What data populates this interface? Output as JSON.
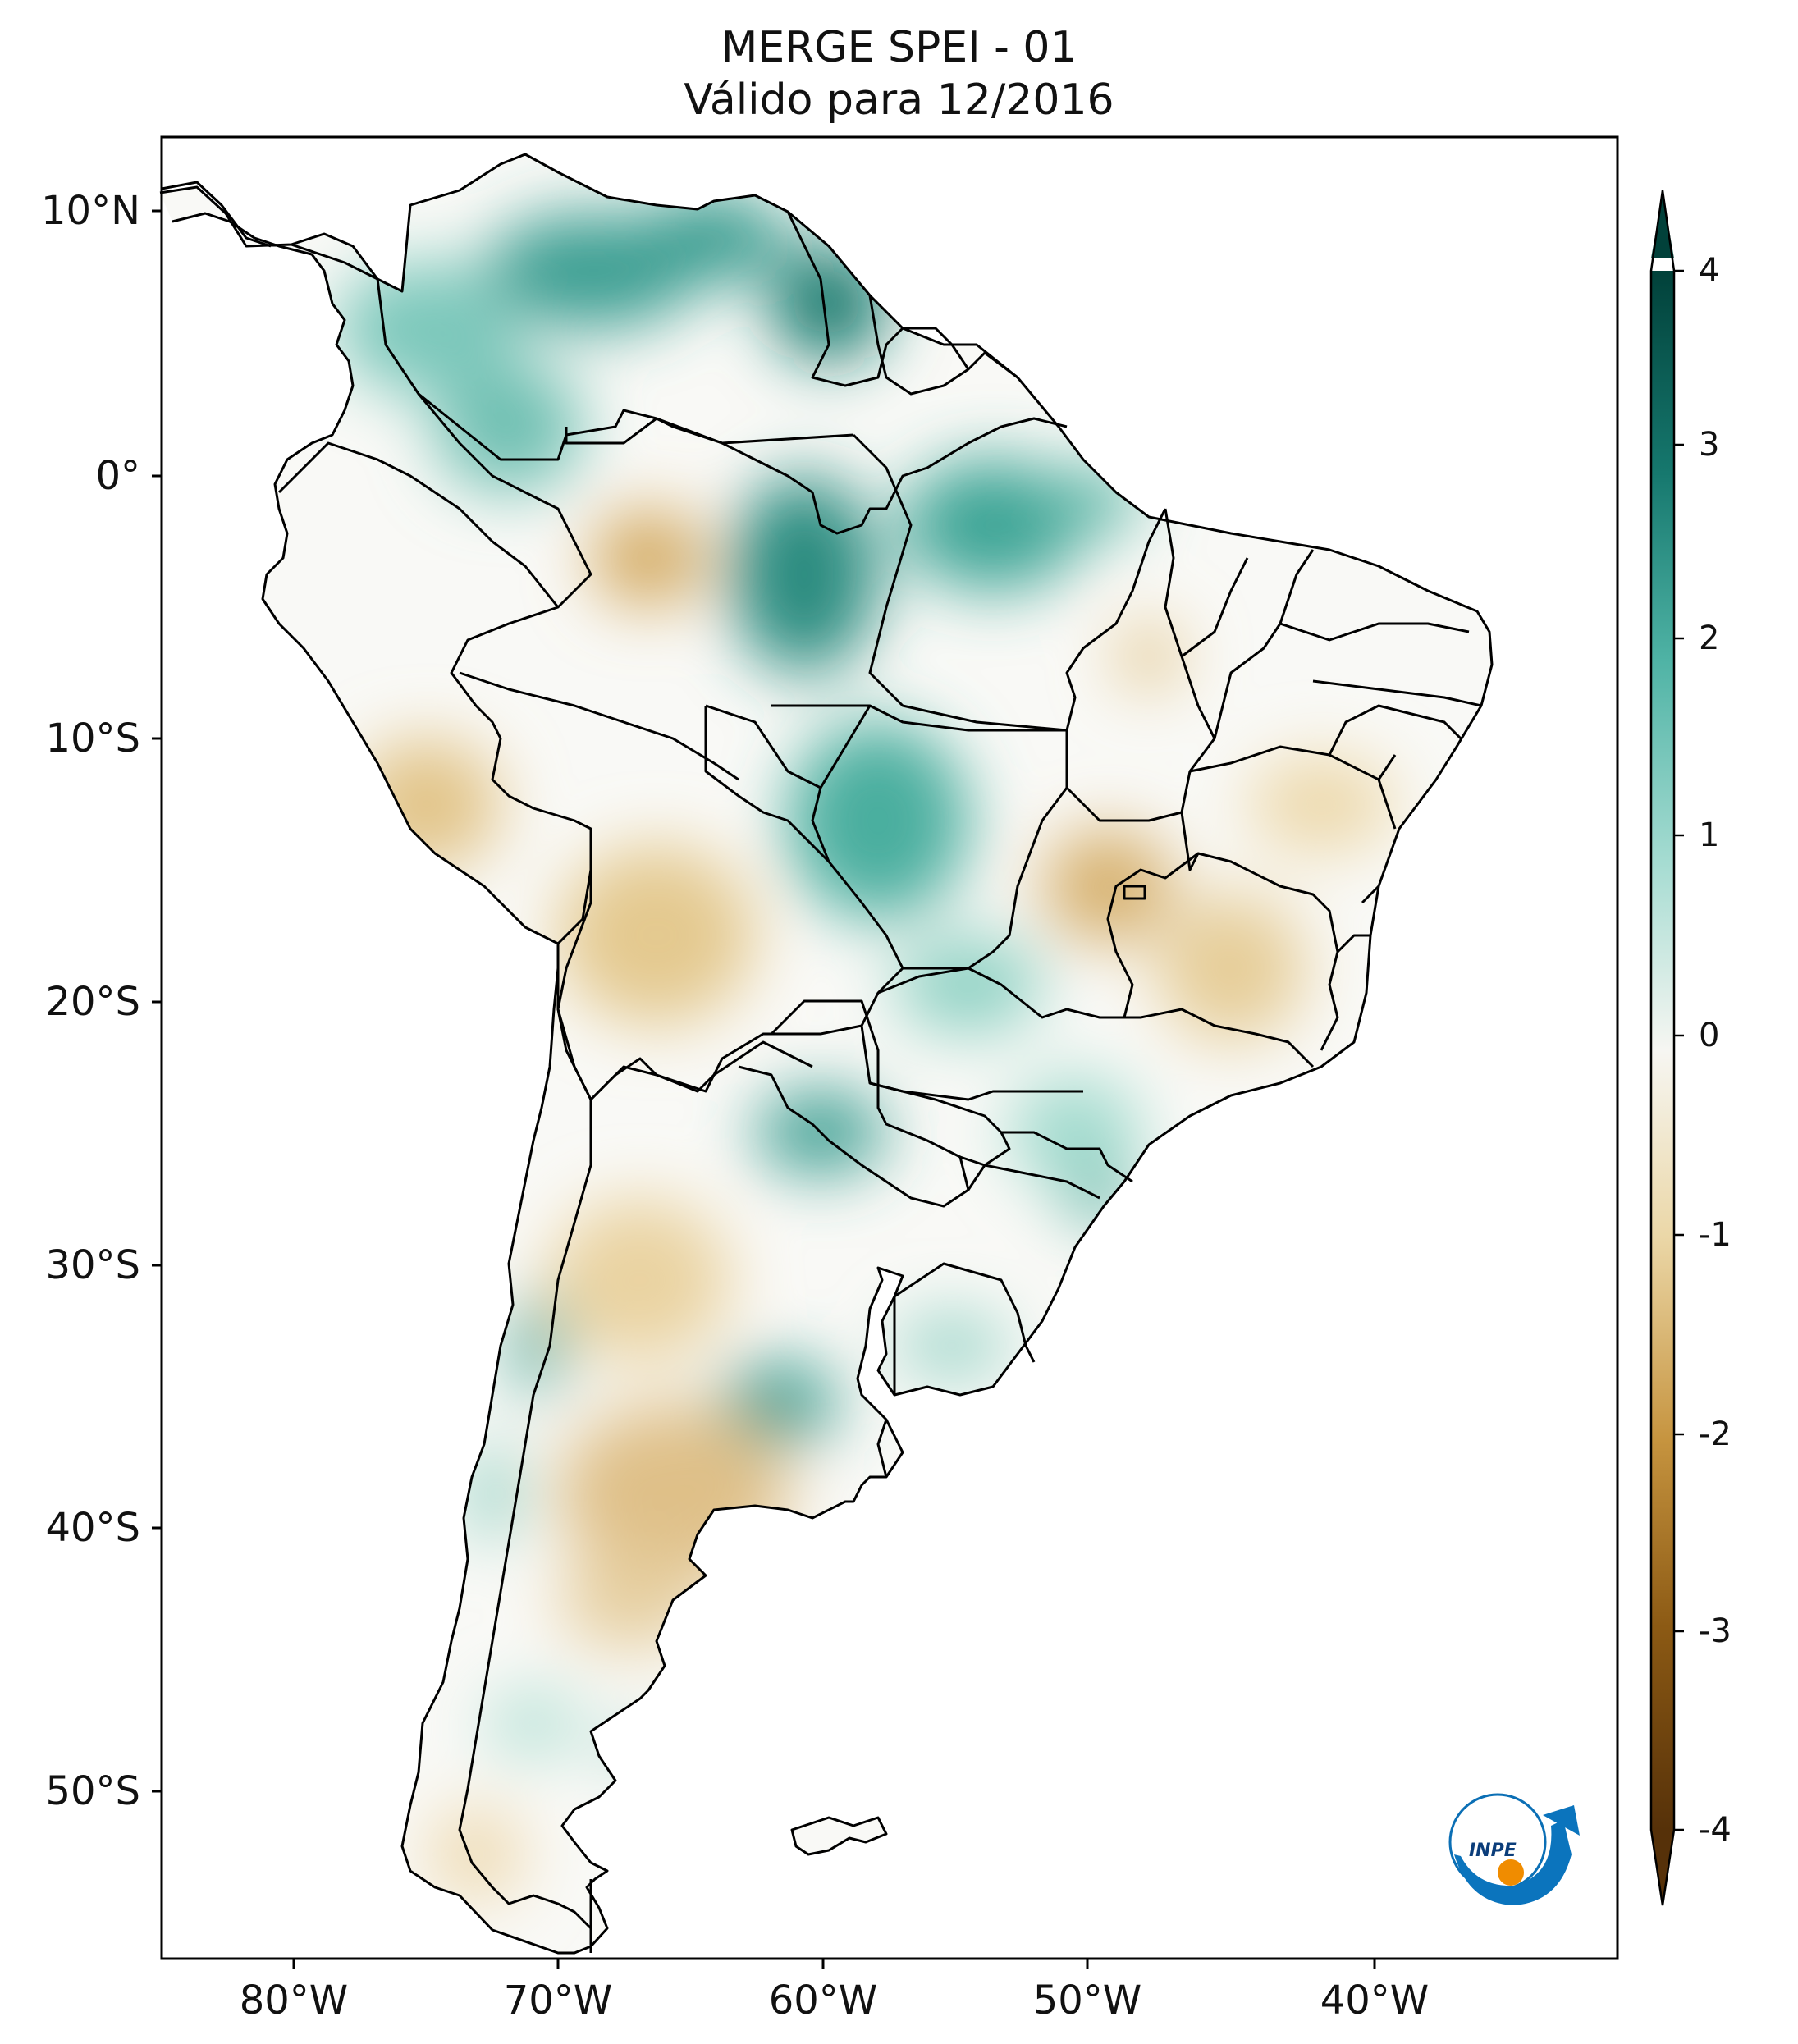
{
  "title": {
    "line1": "MERGE   SPEI - 01",
    "line2": "Válido para 12/2016"
  },
  "axes": {
    "lat_labels": [
      "10°N",
      "0°",
      "10°S",
      "20°S",
      "30°S",
      "40°S",
      "50°S"
    ],
    "lon_labels": [
      "80°W",
      "70°W",
      "60°W",
      "50°W",
      "40°W"
    ],
    "lon_range": [
      -85,
      -30
    ],
    "lat_range": [
      -56,
      13
    ]
  },
  "colorbar": {
    "ticks": [
      "4",
      "3",
      "2",
      "1",
      "0",
      "-1",
      "-2",
      "-3",
      "-4"
    ],
    "range": [
      -4,
      4
    ],
    "colors": {
      "wet_max": "#01413a",
      "wet": "#2a9a8c",
      "wet_light": "#a6dcd2",
      "neutral": "#f6f6f2",
      "dry_light": "#ebd7a7",
      "dry": "#c6943f",
      "dry_max": "#563109"
    }
  },
  "logo": {
    "text": "INPE"
  },
  "colors": {
    "border": "#000000",
    "ocean": "#ffffff",
    "land": "#f9f9f6"
  }
}
